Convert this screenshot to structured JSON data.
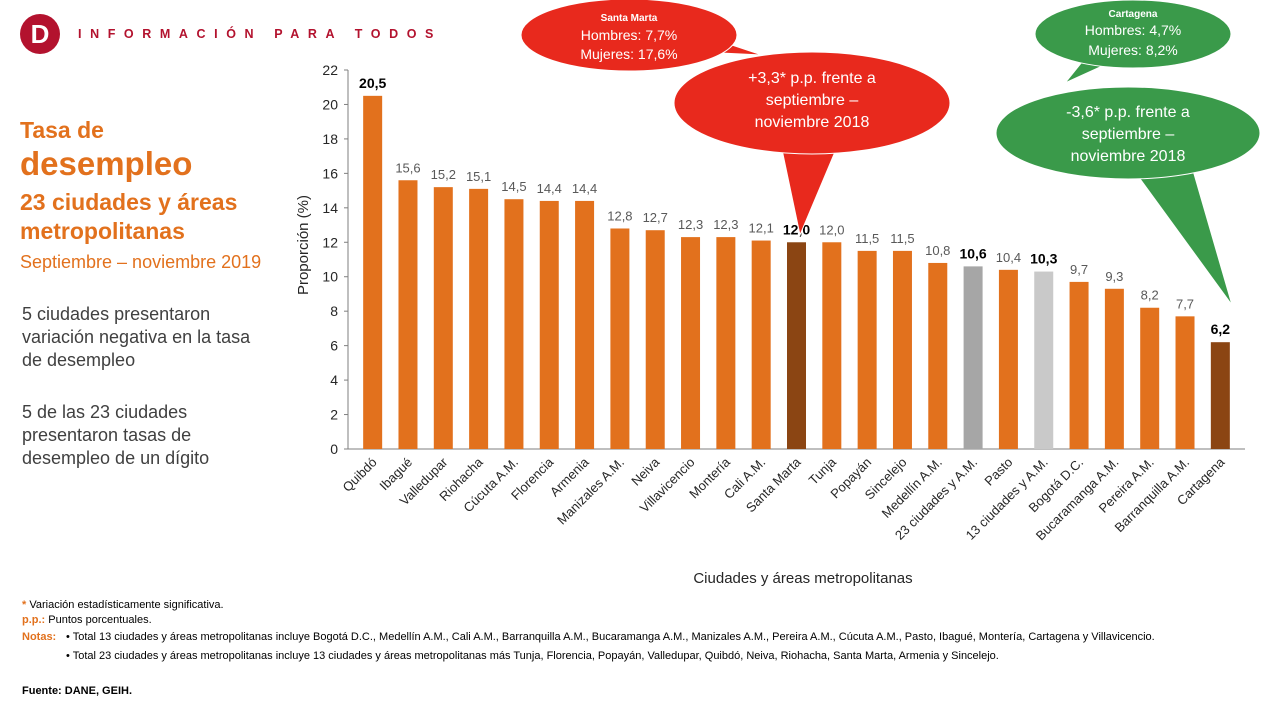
{
  "header": {
    "logo_letter": "D",
    "tagline": "INFORMACIÓN PARA TODOS"
  },
  "side": {
    "title_line1": "Tasa de",
    "title_line2": "desempleo",
    "title_line3": "23 ciudades y áreas metropolitanas",
    "period": "Septiembre – noviembre 2019",
    "note_a": "5 ciudades presentaron variación negativa en la tasa de desempleo",
    "note_b": "5 de las 23 ciudades presentaron tasas de desempleo de un dígito"
  },
  "callouts": {
    "santa_marta": {
      "city": "Santa Marta",
      "hombres": "Hombres: 7,7%",
      "mujeres": "Mujeres: 17,6%"
    },
    "santa_marta_change": [
      "+3,3* p.p. frente a",
      "septiembre –",
      "noviembre 2018"
    ],
    "cartagena": {
      "city": "Cartagena",
      "hombres": "Hombres: 4,7%",
      "mujeres": "Mujeres: 8,2%"
    },
    "cartagena_change": [
      "-3,6* p.p. frente a",
      "septiembre –",
      "noviembre 2018"
    ]
  },
  "colors": {
    "bar": "#e2711d",
    "highlight": "#8b4513",
    "aggregate": "#a6a6a6",
    "aggregate_light": "#c9c9c9",
    "red": "#e8291d",
    "green": "#3a9a4a"
  },
  "chart_data": {
    "type": "bar",
    "title": "",
    "xlabel": "Ciudades y áreas metropolitanas",
    "ylabel": "Proporción (%)",
    "ylim": [
      0,
      22
    ],
    "yticks": [
      0,
      2,
      4,
      6,
      8,
      10,
      12,
      14,
      16,
      18,
      20,
      22
    ],
    "categories": [
      "Quibdó",
      "Ibagué",
      "Valledupar",
      "Riohacha",
      "Cúcuta A.M.",
      "Florencia",
      "Armenia",
      "Manizales A.M.",
      "Neiva",
      "Villavicencio",
      "Montería",
      "Cali A.M.",
      "Santa Marta",
      "Tunja",
      "Popayán",
      "Sincelejo",
      "Medellín A.M.",
      "23 ciudades y A.M.",
      "Pasto",
      "13 ciudades y A.M.",
      "Bogotá D.C.",
      "Bucaramanga A.M.",
      "Pereira A.M.",
      "Barranquilla A.M.",
      "Cartagena"
    ],
    "values": [
      20.5,
      15.6,
      15.2,
      15.1,
      14.5,
      14.4,
      14.4,
      12.8,
      12.7,
      12.3,
      12.3,
      12.1,
      12.0,
      12.0,
      11.5,
      11.5,
      10.8,
      10.6,
      10.4,
      10.3,
      9.7,
      9.3,
      8.2,
      7.7,
      6.2
    ],
    "labels": [
      "20,5",
      "15,6",
      "15,2",
      "15,1",
      "14,5",
      "14,4",
      "14,4",
      "12,8",
      "12,7",
      "12,3",
      "12,3",
      "12,1",
      "12,0",
      "12,0",
      "11,5",
      "11,5",
      "10,8",
      "10,6",
      "10,4",
      "10,3",
      "9,7",
      "9,3",
      "8,2",
      "7,7",
      "6,2"
    ],
    "bold_labels": [
      "Quibdó",
      "Santa Marta",
      "23 ciudades y A.M.",
      "13 ciudades y A.M.",
      "Cartagena"
    ],
    "bar_kind": [
      "max",
      "normal",
      "normal",
      "normal",
      "normal",
      "normal",
      "normal",
      "normal",
      "normal",
      "normal",
      "normal",
      "normal",
      "highlight",
      "normal",
      "normal",
      "normal",
      "normal",
      "aggregate",
      "normal",
      "aggregate_light",
      "normal",
      "normal",
      "normal",
      "normal",
      "highlight"
    ]
  },
  "footer": {
    "asterisk_mark": "*",
    "asterisk": "Variación estadísticamente significativa.",
    "pp_label": "p.p.:",
    "pp": "Puntos porcentuales.",
    "notas_label": "Notas:",
    "nota1": "• Total 13 ciudades y áreas metropolitanas incluye Bogotá D.C., Medellín A.M., Cali A.M., Barranquilla A.M., Bucaramanga A.M., Manizales A.M., Pereira A.M., Cúcuta A.M., Pasto, Ibagué, Montería, Cartagena y Villavicencio.",
    "nota2": "• Total 23 ciudades y áreas metropolitanas incluye 13 ciudades y áreas metropolitanas más Tunja, Florencia, Popayán, Valledupar, Quibdó, Neiva, Riohacha, Santa Marta, Armenia y Sincelejo.",
    "fuente": "Fuente: DANE, GEIH."
  }
}
